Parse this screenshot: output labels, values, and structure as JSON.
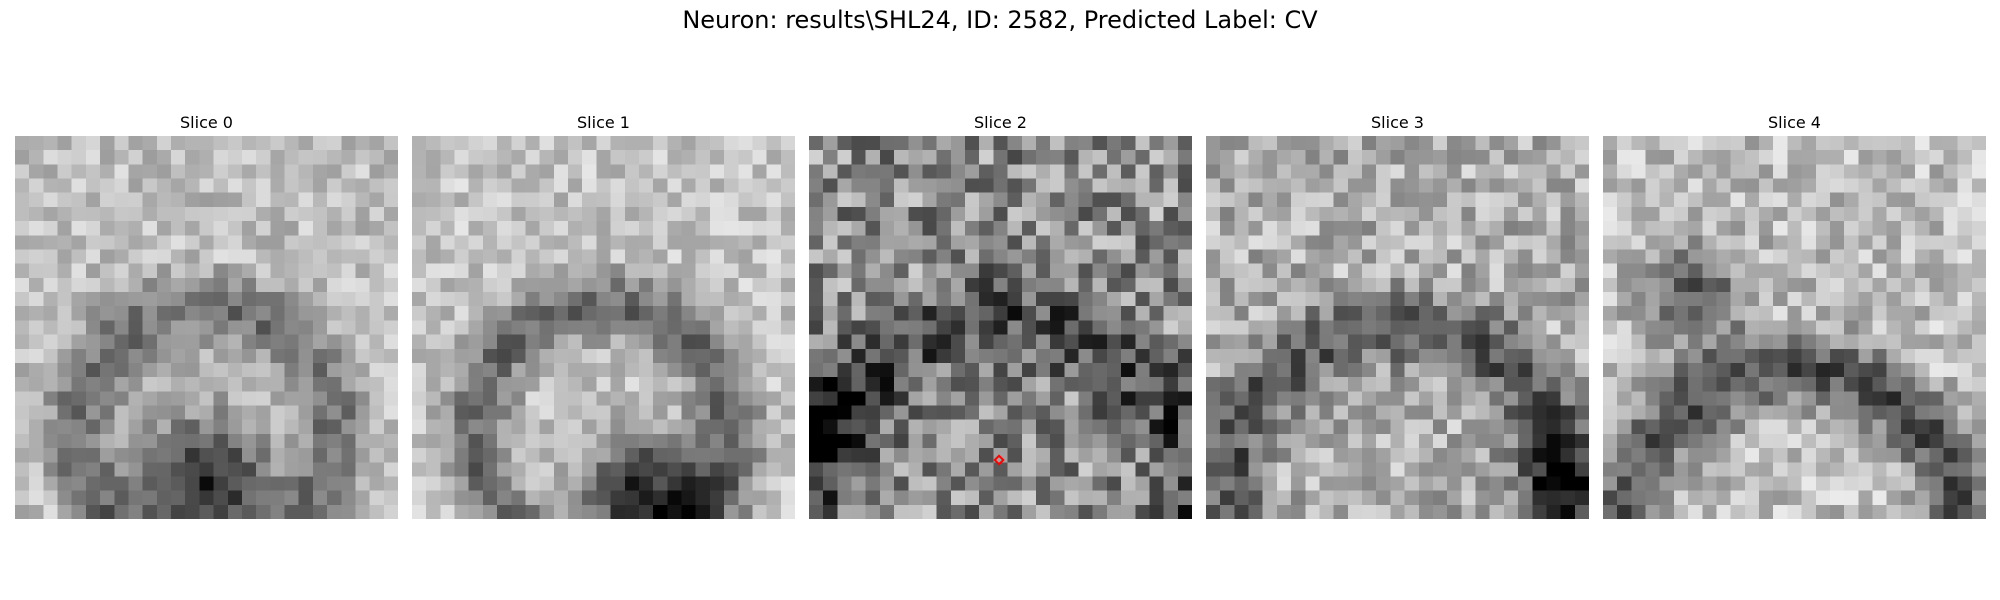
{
  "figure": {
    "title": "Neuron: results\\SHL24, ID: 2582, Predicted Label: CV"
  },
  "slices": [
    {
      "label": "Slice 0"
    },
    {
      "label": "Slice 1"
    },
    {
      "label": "Slice 2"
    },
    {
      "label": "Slice 3"
    },
    {
      "label": "Slice 4"
    }
  ],
  "colormap": "gray",
  "marker": {
    "slice_index": 2,
    "color": "#ff0000",
    "shape": "diamond"
  }
}
